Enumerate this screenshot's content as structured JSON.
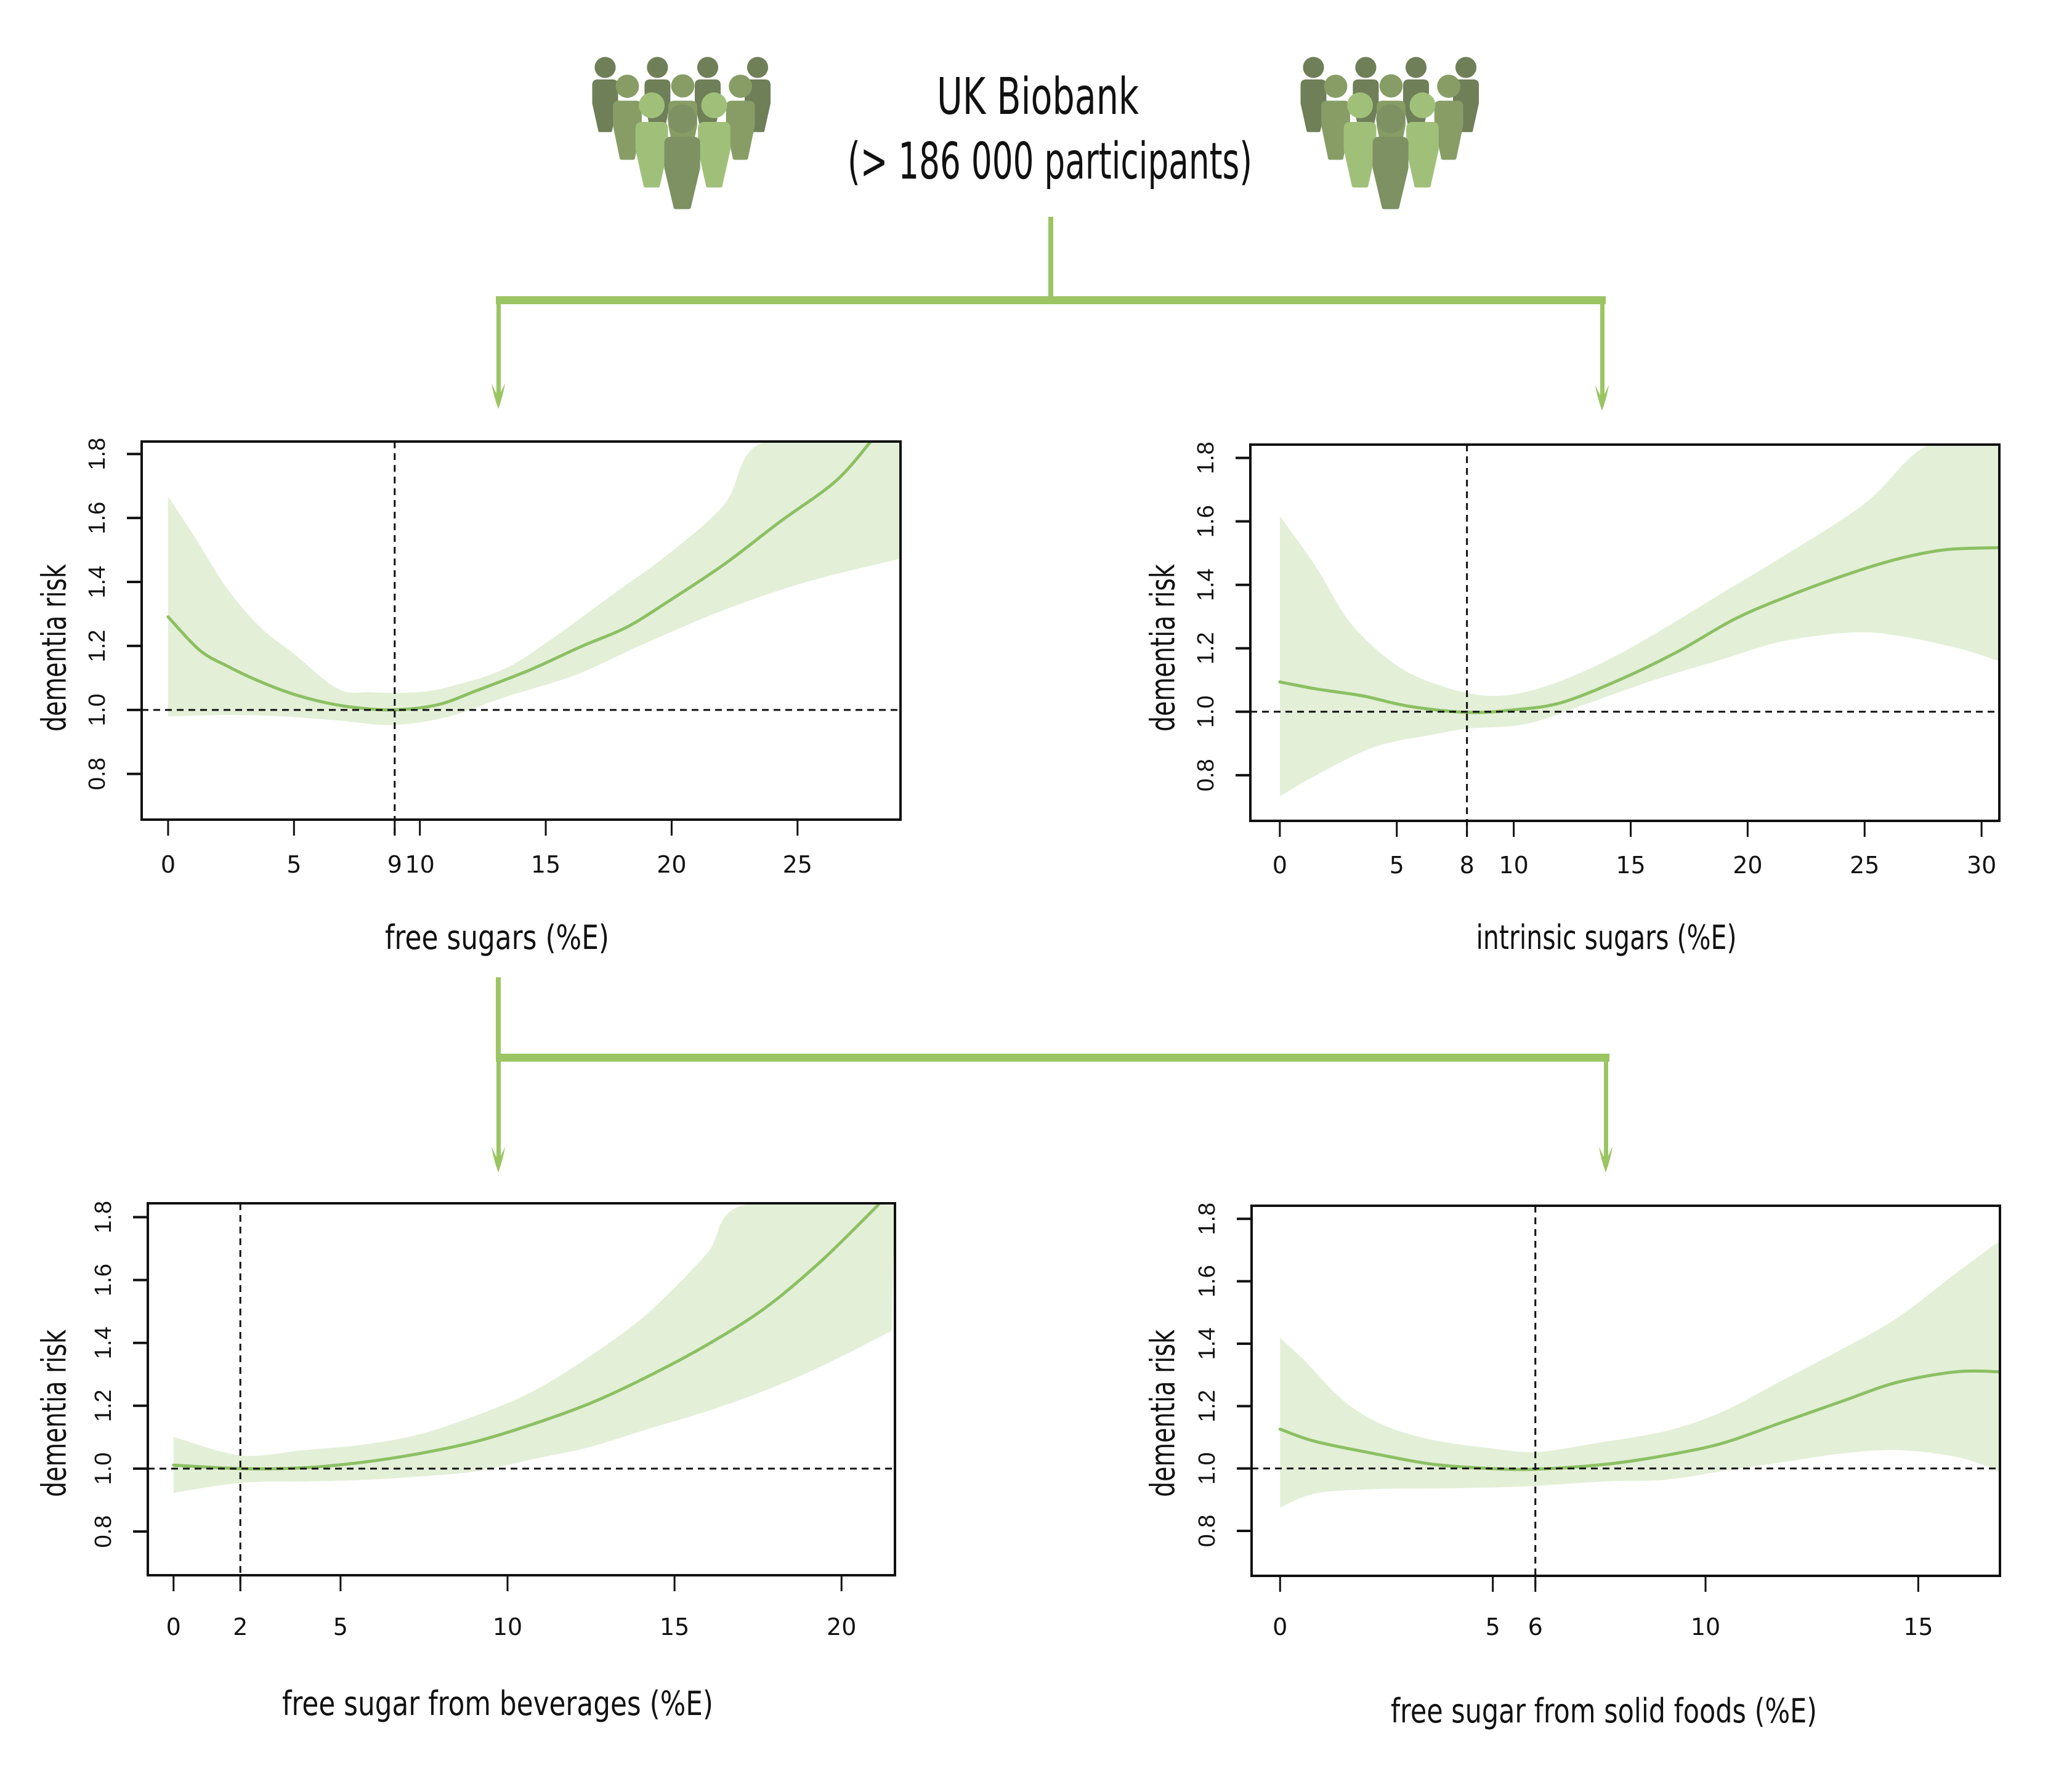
{
  "header": {
    "title": "UK Biobank",
    "subtitle": "(> 186 000 participants)"
  },
  "icons": {
    "left_group": "people-group-icon",
    "right_group": "people-group-icon",
    "arrows": "arrow-down-icon"
  },
  "colors": {
    "connector": "#9bc563",
    "line": "#8cc063",
    "band": "#e3efd7",
    "people_dark": "#6f7f58",
    "people_medium": "#879d65",
    "people_light": "#a0c07a",
    "people_front": "#7d9163",
    "axis": "#111111"
  },
  "chart_data": [
    {
      "type": "line",
      "xlabel": "free sugars (%E)",
      "ylabel": "dementia risk",
      "xlim": [
        -1.05,
        29.09
      ],
      "ylim": [
        0.657,
        1.839
      ],
      "x_ticks": [
        0,
        5,
        9,
        10,
        15,
        20,
        25
      ],
      "y_ticks": [
        0.8,
        1.0,
        1.2,
        1.4,
        1.6,
        1.8
      ],
      "y_tick_labels": [
        "0.8",
        "1.0",
        "1.2",
        "1.4",
        "1.6",
        "1.8"
      ],
      "reference_x": 9,
      "reference_y": 1.0,
      "grid": false,
      "series": [
        {
          "name": "estimate",
          "points": [
            [
              0,
              1.291
            ],
            [
              1.25,
              1.187
            ],
            [
              2.35,
              1.137
            ],
            [
              3.67,
              1.088
            ],
            [
              4.99,
              1.049
            ],
            [
              6.3,
              1.022
            ],
            [
              7.4,
              1.008
            ],
            [
              8.94,
              1.0
            ],
            [
              10.7,
              1.016
            ],
            [
              12.24,
              1.06
            ],
            [
              14.4,
              1.126
            ],
            [
              16.4,
              1.198
            ],
            [
              18.2,
              1.258
            ],
            [
              19.9,
              1.341
            ],
            [
              22.1,
              1.456
            ],
            [
              24.3,
              1.588
            ],
            [
              26.5,
              1.714
            ],
            [
              27.9,
              1.838
            ]
          ]
        }
      ],
      "band": {
        "upper": [
          [
            0,
            1.667
          ],
          [
            1.03,
            1.544
          ],
          [
            2.35,
            1.379
          ],
          [
            3.67,
            1.258
          ],
          [
            4.99,
            1.176
          ],
          [
            6.74,
            1.066
          ],
          [
            8.06,
            1.055
          ],
          [
            9.82,
            1.055
          ],
          [
            11.1,
            1.071
          ],
          [
            13.3,
            1.126
          ],
          [
            15.1,
            1.214
          ],
          [
            17.7,
            1.363
          ],
          [
            19.9,
            1.489
          ],
          [
            22.1,
            1.643
          ],
          [
            23.7,
            1.839
          ],
          [
            29.09,
            1.839
          ]
        ],
        "lower": [
          [
            0,
            0.98
          ],
          [
            2.35,
            0.984
          ],
          [
            4.55,
            0.98
          ],
          [
            6.74,
            0.967
          ],
          [
            8.94,
            0.953
          ],
          [
            11.1,
            0.978
          ],
          [
            13.3,
            1.038
          ],
          [
            16.2,
            1.11
          ],
          [
            18.8,
            1.203
          ],
          [
            22.1,
            1.313
          ],
          [
            25.4,
            1.401
          ],
          [
            29.09,
            1.473
          ]
        ]
      }
    },
    {
      "type": "line",
      "xlabel": "intrinsic sugars (%E)",
      "ylabel": "dementia risk",
      "xlim": [
        -1.26,
        30.76
      ],
      "ylim": [
        0.656,
        1.842
      ],
      "x_ticks": [
        0,
        5,
        8,
        10,
        15,
        20,
        25,
        30
      ],
      "y_ticks": [
        0.8,
        1.0,
        1.2,
        1.4,
        1.6,
        1.8
      ],
      "y_tick_labels": [
        "0.8",
        "1.0",
        "1.2",
        "1.4",
        "1.6",
        "1.8"
      ],
      "reference_x": 8,
      "reference_y": 1.0,
      "grid": false,
      "series": [
        {
          "name": "estimate",
          "points": [
            [
              0,
              1.094
            ],
            [
              1.55,
              1.072
            ],
            [
              3.54,
              1.05
            ],
            [
              5.54,
              1.017
            ],
            [
              8.04,
              0.998
            ],
            [
              10.0,
              1.006
            ],
            [
              12.0,
              1.028
            ],
            [
              14.5,
              1.1
            ],
            [
              17.0,
              1.189
            ],
            [
              19.5,
              1.294
            ],
            [
              22.0,
              1.372
            ],
            [
              24.5,
              1.439
            ],
            [
              26.5,
              1.483
            ],
            [
              28.5,
              1.511
            ],
            [
              30.7,
              1.517
            ]
          ]
        }
      ],
      "band": {
        "upper": [
          [
            0,
            1.617
          ],
          [
            1.55,
            1.456
          ],
          [
            3.04,
            1.278
          ],
          [
            5.04,
            1.144
          ],
          [
            7.04,
            1.078
          ],
          [
            9.03,
            1.05
          ],
          [
            11.0,
            1.072
          ],
          [
            13.5,
            1.144
          ],
          [
            16.0,
            1.244
          ],
          [
            19.0,
            1.378
          ],
          [
            21.5,
            1.489
          ],
          [
            25.0,
            1.656
          ],
          [
            27.7,
            1.839
          ],
          [
            30.76,
            1.839
          ]
        ],
        "lower": [
          [
            0,
            0.733
          ],
          [
            1.55,
            0.8
          ],
          [
            4.04,
            0.889
          ],
          [
            6.54,
            0.928
          ],
          [
            8.04,
            0.947
          ],
          [
            10.5,
            0.961
          ],
          [
            13.0,
            1.022
          ],
          [
            16.0,
            1.1
          ],
          [
            19.0,
            1.167
          ],
          [
            21.5,
            1.222
          ],
          [
            24.5,
            1.25
          ],
          [
            26.5,
            1.239
          ],
          [
            29.0,
            1.2
          ],
          [
            30.7,
            1.161
          ]
        ]
      }
    },
    {
      "type": "line",
      "xlabel": "free sugar from beverages (%E)",
      "ylabel": "dementia risk",
      "xlim": [
        -0.77,
        21.6
      ],
      "ylim": [
        0.661,
        1.844
      ],
      "x_ticks": [
        0,
        2,
        5,
        10,
        15,
        20
      ],
      "y_ticks": [
        0.8,
        1.0,
        1.2,
        1.4,
        1.6,
        1.8
      ],
      "y_tick_labels": [
        "0.8",
        "1.0",
        "1.2",
        "1.4",
        "1.6",
        "1.8"
      ],
      "reference_x": 2,
      "reference_y": 1.0,
      "grid": false,
      "series": [
        {
          "name": "estimate",
          "points": [
            [
              0,
              1.011
            ],
            [
              2.03,
              1.0
            ],
            [
              3.92,
              1.003
            ],
            [
              5.64,
              1.02
            ],
            [
              7.36,
              1.048
            ],
            [
              9.08,
              1.087
            ],
            [
              10.8,
              1.143
            ],
            [
              12.5,
              1.209
            ],
            [
              14.2,
              1.293
            ],
            [
              15.96,
              1.393
            ],
            [
              17.7,
              1.51
            ],
            [
              19.4,
              1.661
            ],
            [
              21.1,
              1.839
            ]
          ]
        }
      ],
      "band": {
        "upper": [
          [
            0,
            1.101
          ],
          [
            2.03,
            1.042
          ],
          [
            3.92,
            1.059
          ],
          [
            5.64,
            1.076
          ],
          [
            7.36,
            1.109
          ],
          [
            9.08,
            1.17
          ],
          [
            10.8,
            1.248
          ],
          [
            12.5,
            1.36
          ],
          [
            14.2,
            1.494
          ],
          [
            15.96,
            1.683
          ],
          [
            17.1,
            1.839
          ],
          [
            21.6,
            1.839
          ]
        ],
        "lower": [
          [
            0,
            0.923
          ],
          [
            2.03,
            0.955
          ],
          [
            3.92,
            0.959
          ],
          [
            5.64,
            0.964
          ],
          [
            7.36,
            0.975
          ],
          [
            9.08,
            0.992
          ],
          [
            10.8,
            1.031
          ],
          [
            12.5,
            1.07
          ],
          [
            14.2,
            1.126
          ],
          [
            15.96,
            1.182
          ],
          [
            17.7,
            1.248
          ],
          [
            19.4,
            1.326
          ],
          [
            21.5,
            1.438
          ]
        ]
      }
    },
    {
      "type": "line",
      "xlabel": "free sugar from solid foods (%E)",
      "ylabel": "dementia risk",
      "xlim": [
        -0.67,
        16.92
      ],
      "ylim": [
        0.656,
        1.842
      ],
      "x_ticks": [
        0,
        5,
        6,
        10,
        15
      ],
      "y_ticks": [
        0.8,
        1.0,
        1.2,
        1.4,
        1.6,
        1.8
      ],
      "y_tick_labels": [
        "0.8",
        "1.0",
        "1.2",
        "1.4",
        "1.6",
        "1.8"
      ],
      "reference_x": 6,
      "reference_y": 1.0,
      "grid": false,
      "series": [
        {
          "name": "estimate",
          "points": [
            [
              0,
              1.126
            ],
            [
              0.82,
              1.087
            ],
            [
              2.2,
              1.048
            ],
            [
              3.57,
              1.014
            ],
            [
              4.94,
              1.0
            ],
            [
              6.04,
              0.998
            ],
            [
              7.68,
              1.014
            ],
            [
              9.06,
              1.042
            ],
            [
              10.4,
              1.081
            ],
            [
              11.8,
              1.148
            ],
            [
              13.2,
              1.215
            ],
            [
              14.5,
              1.276
            ],
            [
              15.9,
              1.31
            ],
            [
              16.9,
              1.31
            ]
          ]
        }
      ],
      "band": {
        "upper": [
          [
            0,
            1.418
          ],
          [
            0.55,
            1.349
          ],
          [
            1.51,
            1.215
          ],
          [
            2.47,
            1.137
          ],
          [
            3.57,
            1.092
          ],
          [
            4.94,
            1.065
          ],
          [
            6.04,
            1.053
          ],
          [
            7.41,
            1.081
          ],
          [
            9.06,
            1.12
          ],
          [
            10.4,
            1.182
          ],
          [
            11.8,
            1.282
          ],
          [
            13.2,
            1.382
          ],
          [
            14.5,
            1.482
          ],
          [
            15.9,
            1.627
          ],
          [
            16.9,
            1.728
          ]
        ],
        "lower": [
          [
            0,
            0.875
          ],
          [
            0.82,
            0.92
          ],
          [
            2.2,
            0.934
          ],
          [
            3.57,
            0.936
          ],
          [
            4.94,
            0.939
          ],
          [
            6.04,
            0.945
          ],
          [
            7.68,
            0.959
          ],
          [
            9.06,
            0.964
          ],
          [
            10.4,
            0.992
          ],
          [
            11.8,
            1.02
          ],
          [
            13.2,
            1.048
          ],
          [
            14.5,
            1.059
          ],
          [
            15.9,
            1.037
          ],
          [
            16.9,
            0.992
          ]
        ]
      }
    }
  ]
}
